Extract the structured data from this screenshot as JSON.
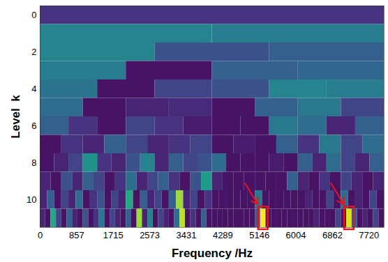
{
  "chart_data": {
    "type": "heatmap",
    "xlabel": "Frequency /Hz",
    "ylabel": "Level  k",
    "xlim": [
      0,
      8075
    ],
    "xticks": [
      0,
      857,
      1715,
      2573,
      3431,
      4289,
      5146,
      6004,
      6862,
      7720
    ],
    "ylim": [
      -0.5,
      11.5
    ],
    "yticks": [
      0,
      2,
      4,
      6,
      8,
      10
    ],
    "color_range": [
      0,
      1
    ],
    "color": "viridis",
    "levels": [
      {
        "k": 0,
        "values": [
          0.15
        ]
      },
      {
        "k": 1,
        "values": [
          0.45,
          0.42
        ]
      },
      {
        "k": 2,
        "values": [
          0.45,
          0.25,
          0.3
        ]
      },
      {
        "k": 3,
        "values": [
          0.42,
          0.05,
          0.3,
          0.33
        ]
      },
      {
        "k": 4,
        "values": [
          0.38,
          0.05,
          0.2,
          0.25,
          0.45,
          0.42
        ]
      },
      {
        "k": 5,
        "values": [
          0.35,
          0.05,
          0.1,
          0.12,
          0.05,
          0.3,
          0.4,
          0.2
        ]
      },
      {
        "k": 6,
        "values": [
          0.3,
          0.15,
          0.05,
          0.2,
          0.15,
          0.08,
          0.05,
          0.05,
          0.4,
          0.35,
          0.1,
          0.3
        ]
      },
      {
        "k": 7,
        "values": [
          0.05,
          0.15,
          0.1,
          0.3,
          0.2,
          0.1,
          0.15,
          0.2,
          0.05,
          0.08,
          0.05,
          0.3,
          0.15,
          0.4,
          0.2,
          0.35
        ]
      },
      {
        "k": 8,
        "values": [
          0.05,
          0.1,
          0.2,
          0.5,
          0.15,
          0.1,
          0.25,
          0.45,
          0.1,
          0.3,
          0.2,
          0.25,
          0.35,
          0.05,
          0.05,
          0.05,
          0.08,
          0.05,
          0.3,
          0.1,
          0.35,
          0.2,
          0.1,
          0.3
        ]
      },
      {
        "k": 9,
        "values": [
          0.1,
          0.05,
          0.25,
          0.1,
          0.3,
          0.2,
          0.05,
          0.15,
          0.35,
          0.1,
          0.2,
          0.3,
          0.15,
          0.05,
          0.25,
          0.55,
          0.1,
          0.05,
          0.05,
          0.05,
          0.05,
          0.05,
          0.05,
          0.3,
          0.1,
          0.05,
          0.15,
          0.05,
          0.2,
          0.1,
          0.05,
          0.1
        ]
      },
      {
        "k": 10,
        "values": [
          0.1,
          0.3,
          0.05,
          0.2,
          0.1,
          0.35,
          0.05,
          0.15,
          0.25,
          0.05,
          0.2,
          0.1,
          0.6,
          0.05,
          0.3,
          0.1,
          0.2,
          0.05,
          0.3,
          0.85,
          0.1,
          0.2,
          0.05,
          0.15,
          0.05,
          0.05,
          0.05,
          0.05,
          0.05,
          0.05,
          0.4,
          0.05,
          0.05,
          0.05,
          0.05,
          0.05,
          0.05,
          0.1,
          0.05,
          0.05,
          0.2,
          0.05,
          0.35,
          0.05,
          0.1,
          0.05,
          0.2,
          0.05
        ]
      },
      {
        "k": 11,
        "values": [
          0.1,
          0.05,
          0.6,
          0.2,
          0.05,
          0.3,
          0.1,
          0.05,
          0.25,
          0.05,
          0.15,
          0.4,
          0.05,
          0.2,
          0.1,
          0.05,
          0.3,
          0.05,
          0.85,
          0.1,
          0.45,
          0.05,
          0.2,
          0.1,
          0.05,
          0.35,
          0.9,
          0.05,
          0.15,
          0.05,
          0.3,
          0.05,
          0.05,
          0.05,
          0.05,
          0.05,
          0.05,
          0.05,
          0.05,
          0.05,
          0.3,
          1.0,
          0.05,
          0.05,
          0.05,
          0.05,
          0.05,
          0.05,
          0.05,
          0.05,
          0.05,
          0.1,
          0.05,
          0.05,
          0.05,
          0.2,
          0.05,
          0.95,
          0.3,
          0.05,
          0.1,
          0.05,
          0.2,
          0.05
        ]
      }
    ],
    "highlights": [
      {
        "level": 11,
        "index": 41
      },
      {
        "level": 11,
        "index": 57
      }
    ]
  }
}
